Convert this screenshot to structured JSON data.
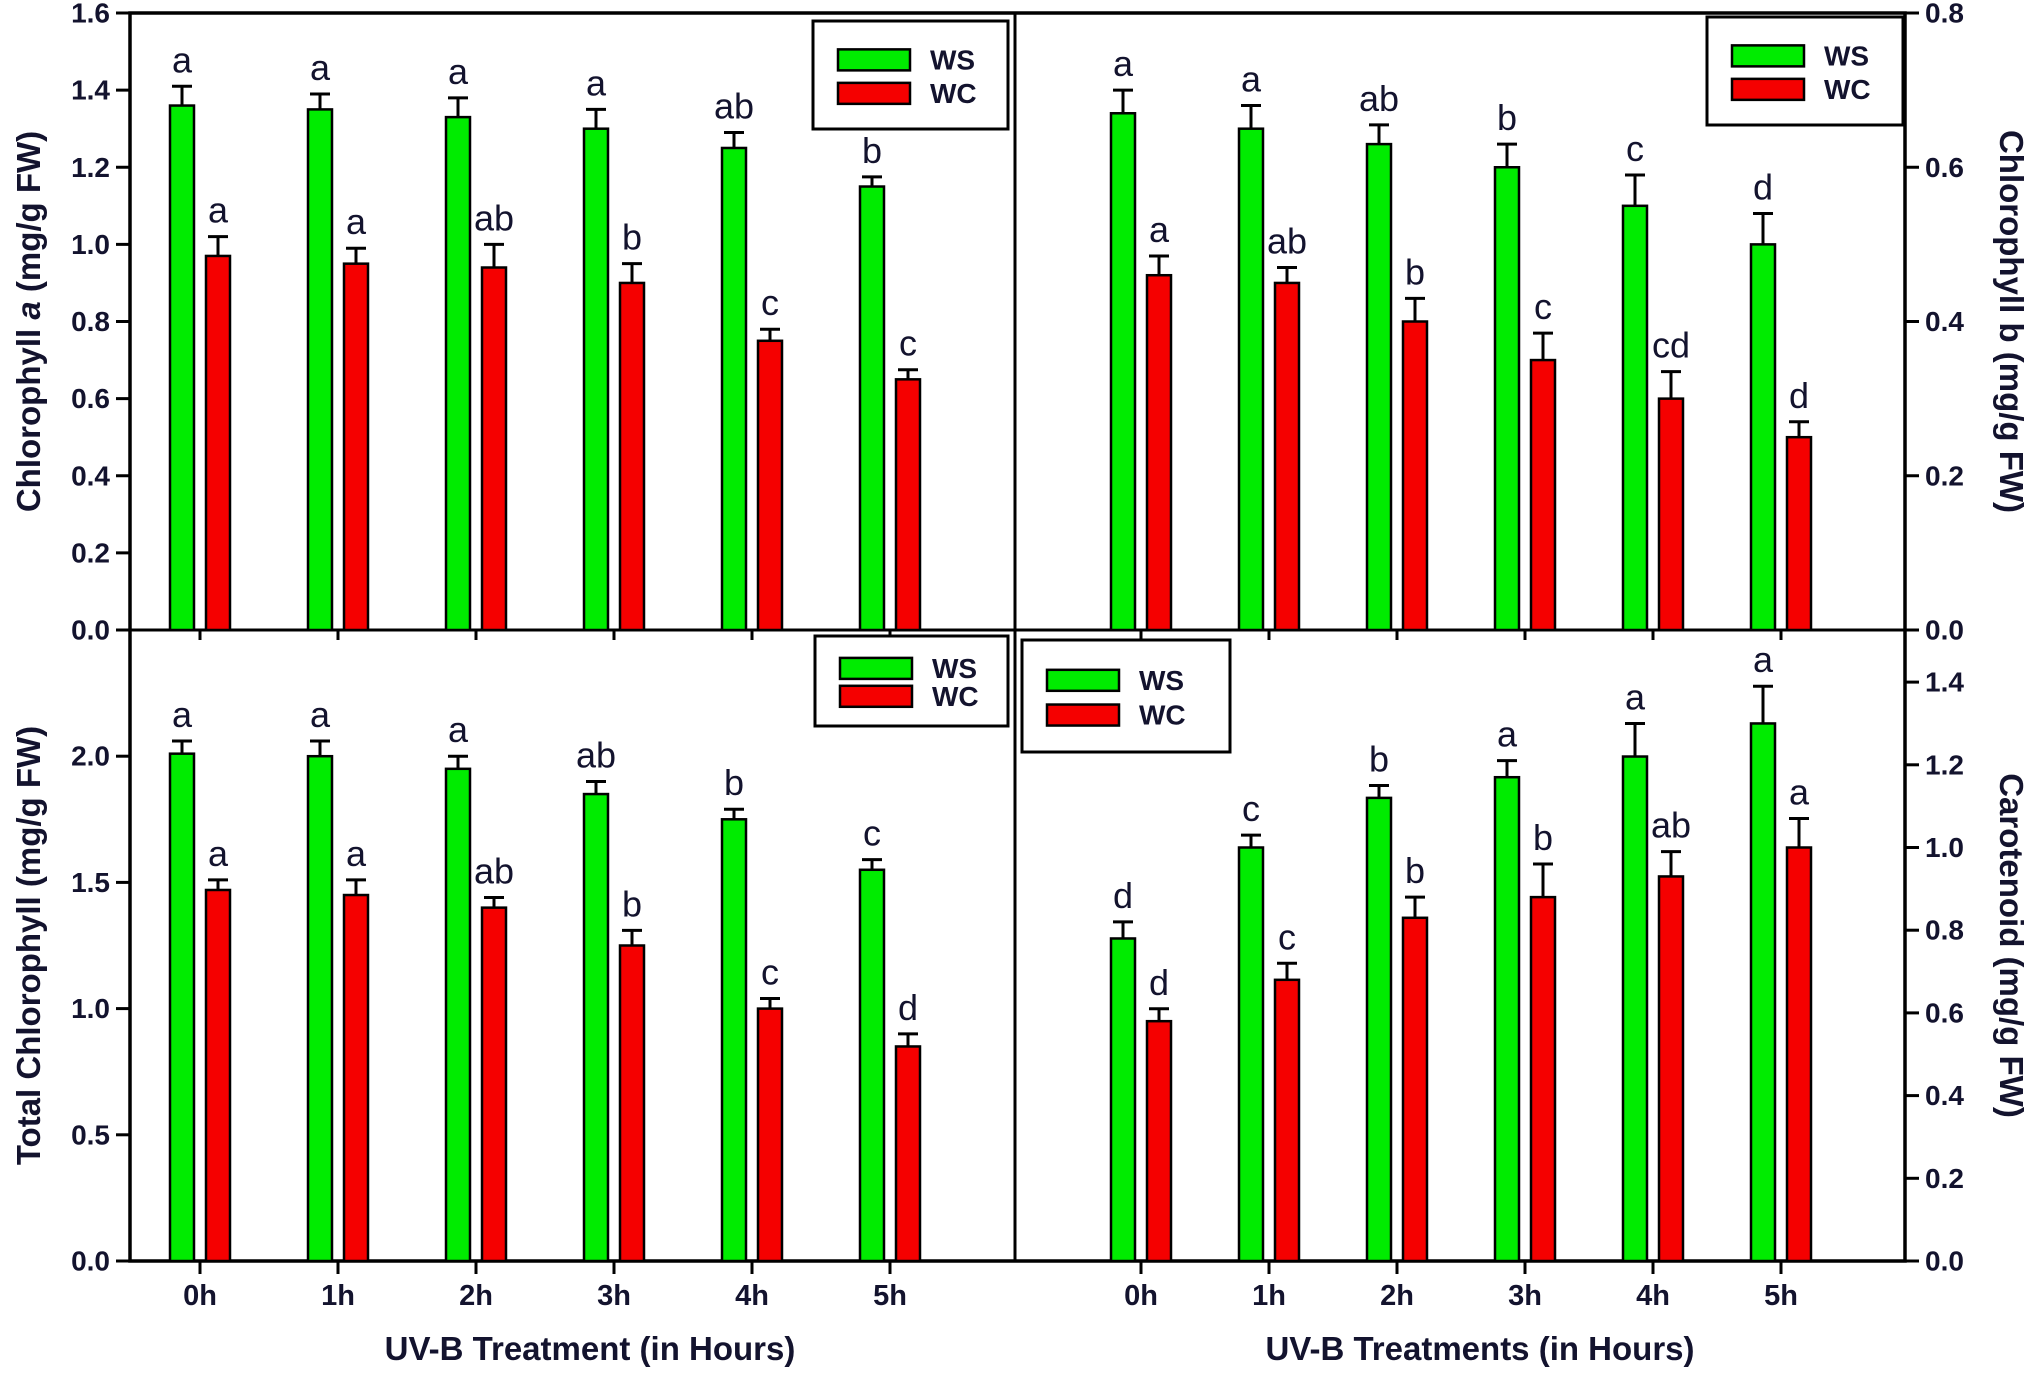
{
  "figure": {
    "kind": "four-panel grouped bar chart of pigment content under UV-B treatment",
    "background": "#ffffff"
  },
  "colors": {
    "ws": "#00ec00",
    "wc": "#f50000",
    "bar_outline": "#000000",
    "axis": "#000000",
    "text": "#13132e"
  },
  "legend": {
    "ws_label": "WS",
    "wc_label": "WC"
  },
  "categories": [
    "0h",
    "1h",
    "2h",
    "3h",
    "4h",
    "5h"
  ],
  "x_axis_titles": {
    "left": "UV-B Treatment (in Hours)",
    "right": "UV-B Treatments (in Hours)"
  },
  "chart_data": [
    {
      "id": "chl_a",
      "type": "bar",
      "panel": "top-left",
      "ylabel": {
        "prefix": "Chlorophyll ",
        "italic": "a",
        "suffix": " (mg/g FW)"
      },
      "axis_side": "left",
      "ylim": [
        0,
        1.6
      ],
      "yticks": [
        0.0,
        0.2,
        0.4,
        0.6,
        0.8,
        1.0,
        1.2,
        1.4,
        1.6
      ],
      "grid": false,
      "legend_position": "inside-top-right",
      "series": [
        {
          "name": "WS",
          "color_key": "ws",
          "values": [
            1.36,
            1.35,
            1.33,
            1.3,
            1.25,
            1.15
          ],
          "errors": [
            0.05,
            0.04,
            0.05,
            0.05,
            0.04,
            0.025
          ],
          "letters": [
            "a",
            "a",
            "a",
            "a",
            "ab",
            "b"
          ]
        },
        {
          "name": "WC",
          "color_key": "wc",
          "values": [
            0.97,
            0.95,
            0.94,
            0.9,
            0.75,
            0.65
          ],
          "errors": [
            0.05,
            0.04,
            0.06,
            0.05,
            0.03,
            0.025
          ],
          "letters": [
            "a",
            "a",
            "ab",
            "b",
            "c",
            "c"
          ]
        }
      ]
    },
    {
      "id": "chl_b",
      "type": "bar",
      "panel": "top-right",
      "ylabel": {
        "prefix": "Chlorophyll b (mg/g FW)",
        "italic": "",
        "suffix": ""
      },
      "axis_side": "right",
      "ylim": [
        0,
        0.8
      ],
      "yticks": [
        0.0,
        0.2,
        0.4,
        0.6,
        0.8
      ],
      "grid": false,
      "legend_position": "inside-top-right",
      "series": [
        {
          "name": "WS",
          "color_key": "ws",
          "values": [
            0.67,
            0.65,
            0.63,
            0.6,
            0.55,
            0.5
          ],
          "errors": [
            0.03,
            0.03,
            0.025,
            0.03,
            0.04,
            0.04
          ],
          "letters": [
            "a",
            "a",
            "ab",
            "b",
            "c",
            "d"
          ]
        },
        {
          "name": "WC",
          "color_key": "wc",
          "values": [
            0.46,
            0.45,
            0.4,
            0.35,
            0.3,
            0.25
          ],
          "errors": [
            0.025,
            0.02,
            0.03,
            0.035,
            0.035,
            0.02
          ],
          "letters": [
            "a",
            "ab",
            "b",
            "c",
            "cd",
            "d"
          ]
        }
      ]
    },
    {
      "id": "total_chl",
      "type": "bar",
      "panel": "bottom-left",
      "ylabel": {
        "prefix": "Total Chlorophyll (mg/g FW)",
        "italic": "",
        "suffix": ""
      },
      "axis_side": "left",
      "ylim": [
        0,
        2.5
      ],
      "yticks": [
        0.0,
        0.5,
        1.0,
        1.5,
        2.0
      ],
      "grid": false,
      "legend_position": "inside-top-right",
      "series": [
        {
          "name": "WS",
          "color_key": "ws",
          "values": [
            2.01,
            2.0,
            1.95,
            1.85,
            1.75,
            1.55
          ],
          "errors": [
            0.05,
            0.06,
            0.05,
            0.05,
            0.04,
            0.04
          ],
          "letters": [
            "a",
            "a",
            "a",
            "ab",
            "b",
            "c"
          ]
        },
        {
          "name": "WC",
          "color_key": "wc",
          "values": [
            1.47,
            1.45,
            1.4,
            1.25,
            1.0,
            0.85
          ],
          "errors": [
            0.04,
            0.06,
            0.04,
            0.06,
            0.04,
            0.05
          ],
          "letters": [
            "a",
            "a",
            "ab",
            "b",
            "c",
            "d"
          ]
        }
      ]
    },
    {
      "id": "carotenoid",
      "type": "bar",
      "panel": "bottom-right",
      "ylabel": {
        "prefix": "Carotenoid (mg/g FW)",
        "italic": "",
        "suffix": ""
      },
      "axis_side": "right",
      "ylim": [
        0,
        1.526
      ],
      "yticks": [
        0.0,
        0.2,
        0.4,
        0.6,
        0.8,
        1.0,
        1.2,
        1.4
      ],
      "grid": false,
      "legend_position": "inside-top-left",
      "series": [
        {
          "name": "WS",
          "color_key": "ws",
          "values": [
            0.78,
            1.0,
            1.12,
            1.17,
            1.22,
            1.3
          ],
          "errors": [
            0.04,
            0.03,
            0.03,
            0.04,
            0.08,
            0.09
          ],
          "letters": [
            "d",
            "c",
            "b",
            "a",
            "a",
            "a"
          ]
        },
        {
          "name": "WC",
          "color_key": "wc",
          "values": [
            0.58,
            0.68,
            0.83,
            0.88,
            0.93,
            1.0
          ],
          "errors": [
            0.03,
            0.04,
            0.05,
            0.08,
            0.06,
            0.07
          ],
          "letters": [
            "d",
            "c",
            "b",
            "b",
            "ab",
            "a"
          ]
        }
      ]
    }
  ]
}
